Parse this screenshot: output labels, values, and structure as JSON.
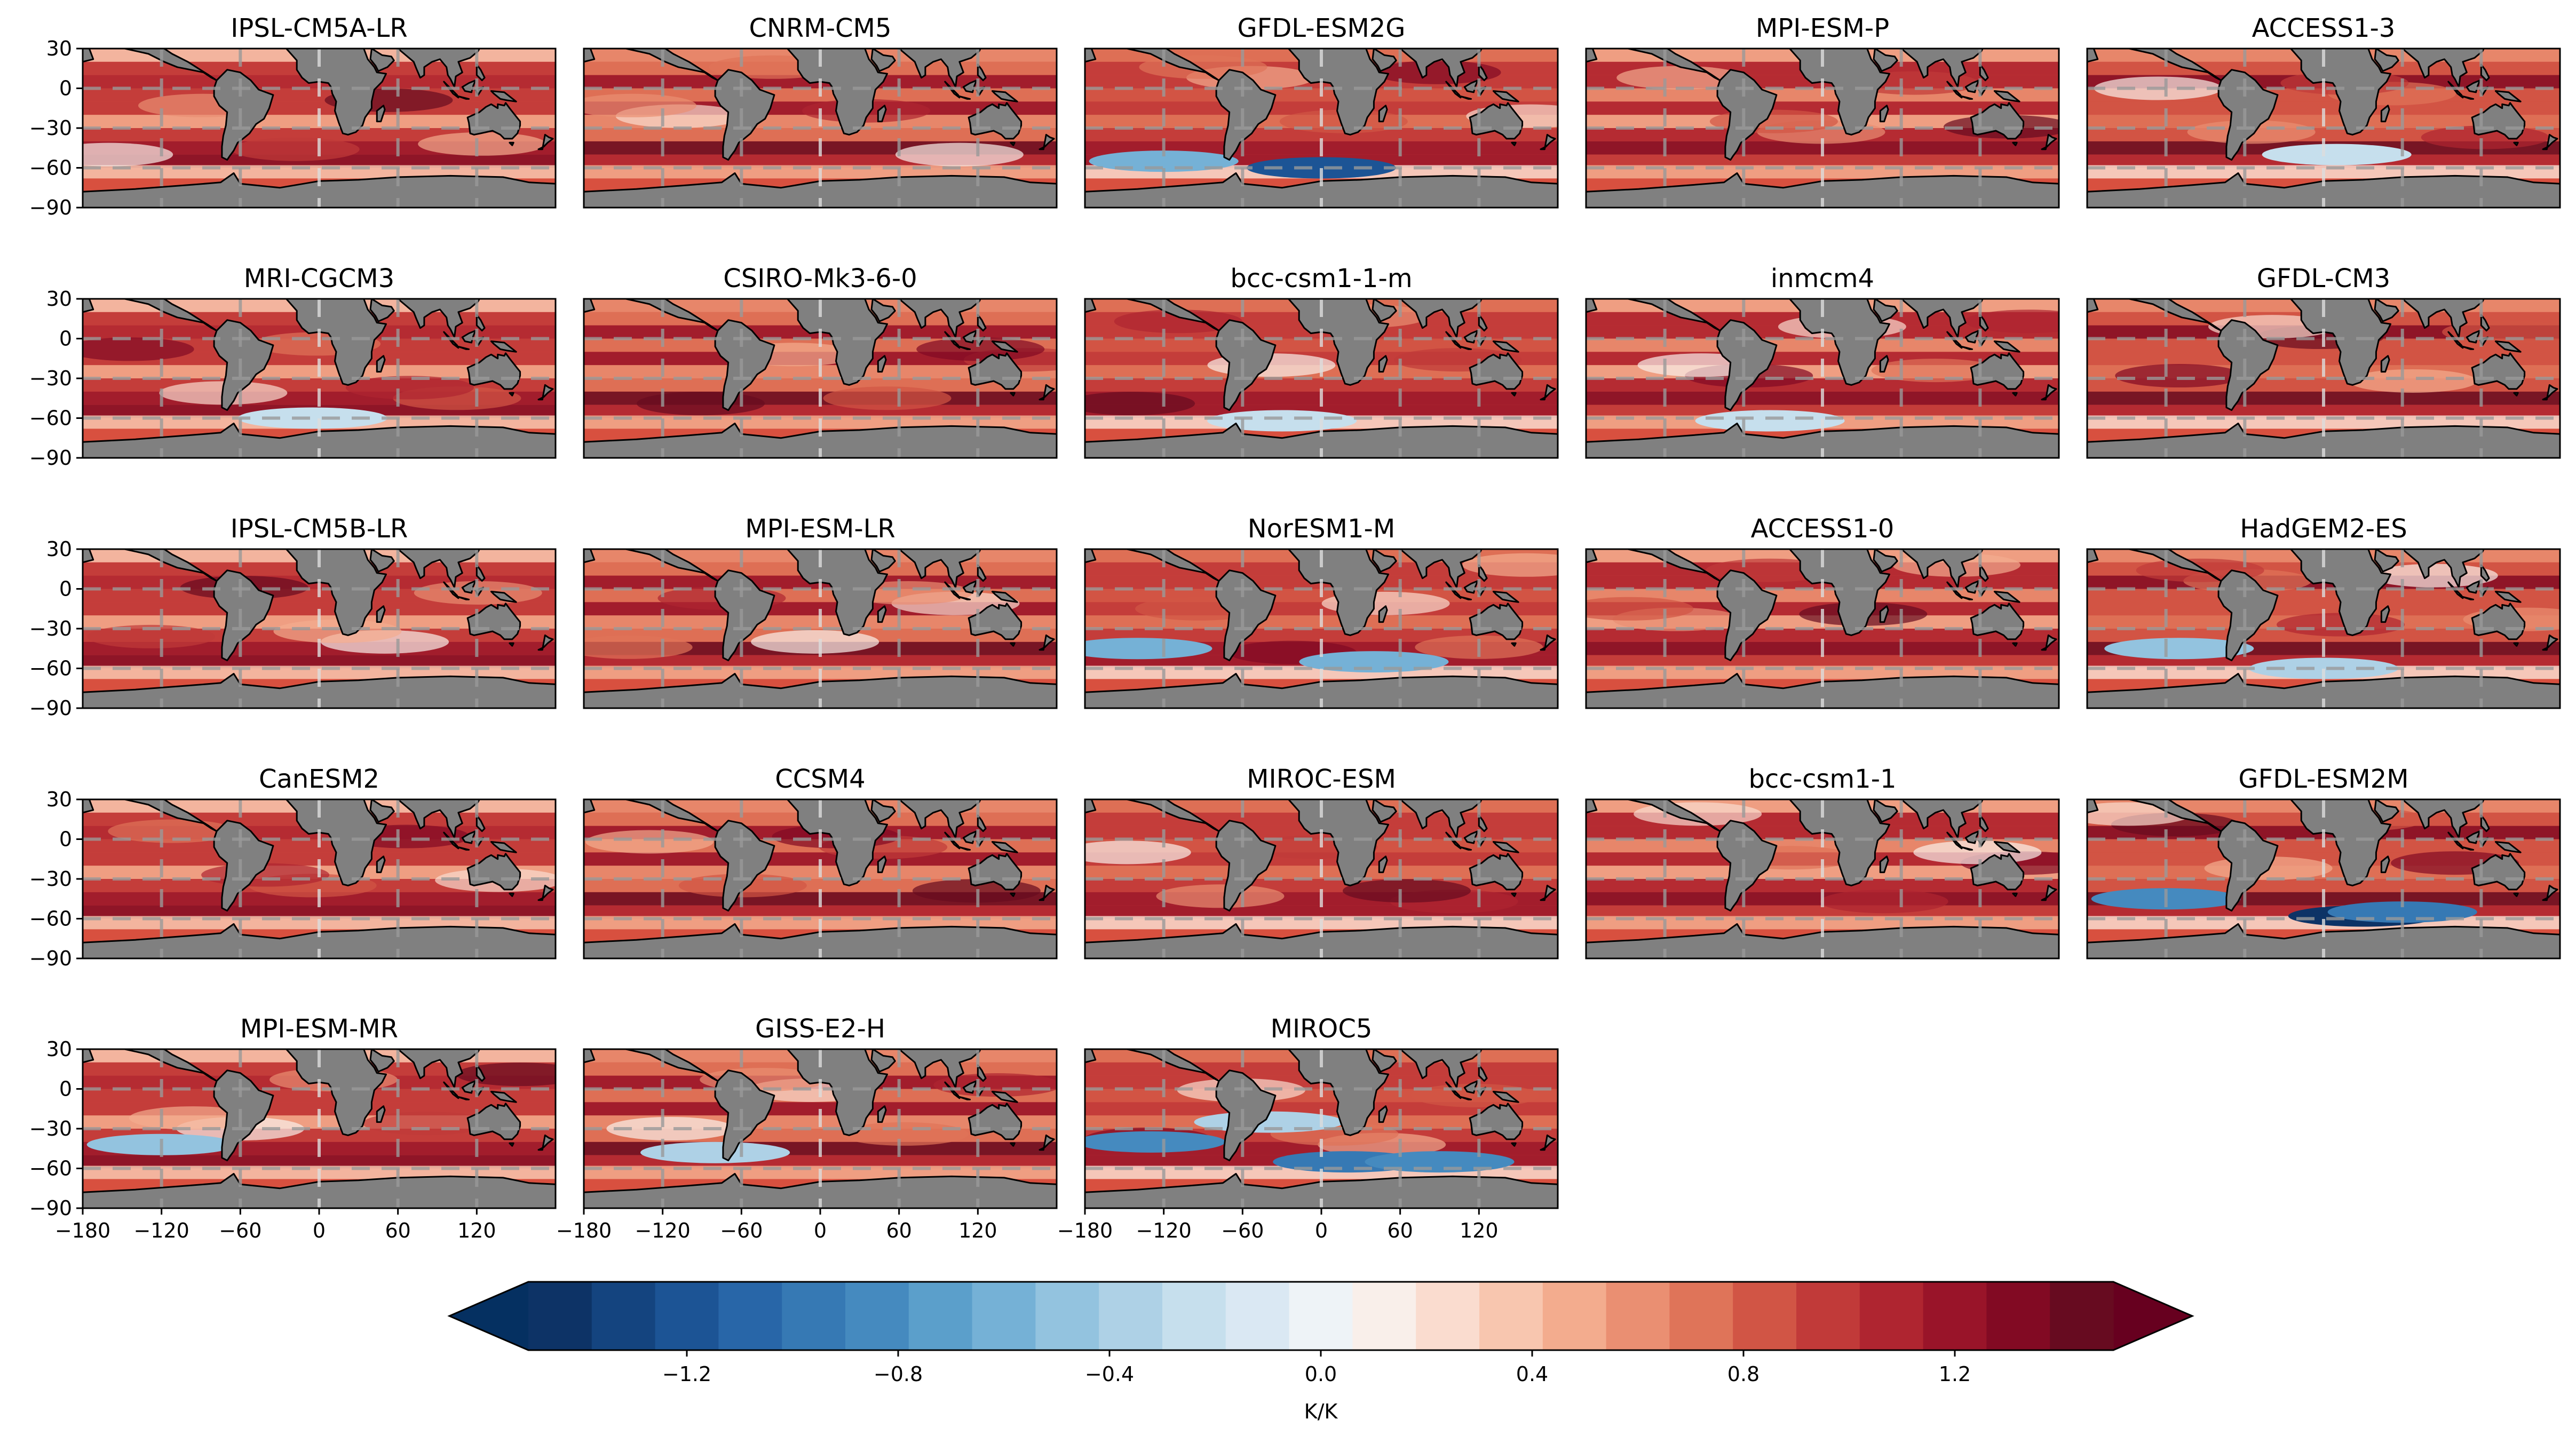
{
  "chart_data": {
    "type": "heatmap",
    "panels": [
      {
        "title": "IPSL-CM5A-LR",
        "cold_spots": []
      },
      {
        "title": "CNRM-CM5",
        "cold_spots": []
      },
      {
        "title": "GFDL-ESM2G",
        "cold_spots": [
          {
            "lon": 0,
            "lat": -60,
            "value": -1.2
          },
          {
            "lon": -120,
            "lat": -55,
            "value": -0.6
          }
        ]
      },
      {
        "title": "MPI-ESM-P",
        "cold_spots": []
      },
      {
        "title": "ACCESS1-3",
        "cold_spots": [
          {
            "lon": 10,
            "lat": -50,
            "value": -0.3
          }
        ]
      },
      {
        "title": "MRI-CGCM3",
        "cold_spots": [
          {
            "lon": -5,
            "lat": -60,
            "value": -0.3
          }
        ]
      },
      {
        "title": "CSIRO-Mk3-6-0",
        "cold_spots": []
      },
      {
        "title": "bcc-csm1-1-m",
        "cold_spots": [
          {
            "lon": -30,
            "lat": -62,
            "value": -0.3
          }
        ]
      },
      {
        "title": "inmcm4",
        "cold_spots": [
          {
            "lon": -40,
            "lat": -62,
            "value": -0.3
          }
        ]
      },
      {
        "title": "GFDL-CM3",
        "cold_spots": []
      },
      {
        "title": "IPSL-CM5B-LR",
        "cold_spots": []
      },
      {
        "title": "MPI-ESM-LR",
        "cold_spots": []
      },
      {
        "title": "NorESM1-M",
        "cold_spots": [
          {
            "lon": -140,
            "lat": -45,
            "value": -0.6
          },
          {
            "lon": 40,
            "lat": -55,
            "value": -0.6
          }
        ]
      },
      {
        "title": "ACCESS1-0",
        "cold_spots": []
      },
      {
        "title": "HadGEM2-ES",
        "cold_spots": [
          {
            "lon": -110,
            "lat": -45,
            "value": -0.5
          },
          {
            "lon": 0,
            "lat": -60,
            "value": -0.4
          }
        ]
      },
      {
        "title": "CanESM2",
        "cold_spots": []
      },
      {
        "title": "CCSM4",
        "cold_spots": []
      },
      {
        "title": "MIROC-ESM",
        "cold_spots": []
      },
      {
        "title": "bcc-csm1-1",
        "cold_spots": []
      },
      {
        "title": "GFDL-ESM2M",
        "cold_spots": [
          {
            "lon": 30,
            "lat": -58,
            "value": -1.4
          },
          {
            "lon": -120,
            "lat": -45,
            "value": -0.8
          },
          {
            "lon": 60,
            "lat": -55,
            "value": -1.0
          }
        ]
      },
      {
        "title": "MPI-ESM-MR",
        "cold_spots": [
          {
            "lon": -120,
            "lat": -42,
            "value": -0.5
          }
        ]
      },
      {
        "title": "GISS-E2-H",
        "cold_spots": [
          {
            "lon": -80,
            "lat": -48,
            "value": -0.4
          }
        ]
      },
      {
        "title": "MIROC5",
        "cold_spots": [
          {
            "lon": -130,
            "lat": -40,
            "value": -0.8
          },
          {
            "lon": 20,
            "lat": -55,
            "value": -1.0
          },
          {
            "lon": -40,
            "lat": -25,
            "value": -0.4
          },
          {
            "lon": 90,
            "lat": -55,
            "value": -0.8
          }
        ]
      }
    ],
    "x_axis": {
      "range": [
        -180,
        180
      ],
      "ticks": [
        -180,
        -120,
        -60,
        0,
        60,
        120
      ],
      "tick_labels": [
        "−180",
        "−120",
        "−60",
        "0",
        "60",
        "120"
      ]
    },
    "y_axis": {
      "range": [
        -90,
        30
      ],
      "ticks": [
        30,
        0,
        -30,
        -60,
        -90
      ],
      "tick_labels": [
        "30",
        "0",
        "−30",
        "−60",
        "−90"
      ]
    },
    "colorbar": {
      "label": "K/K",
      "range": [
        -1.5,
        1.5
      ],
      "extend": "both",
      "ticks": [
        -1.2,
        -0.8,
        -0.4,
        0.0,
        0.4,
        0.8,
        1.2
      ],
      "tick_labels": [
        "−1.2",
        "−0.8",
        "−0.4",
        "0.0",
        "0.4",
        "0.8",
        "1.2"
      ],
      "colors": [
        "#0d3366",
        "#14447f",
        "#1c5495",
        "#2866a8",
        "#3679b4",
        "#458abf",
        "#5b9fcb",
        "#75b1d6",
        "#93c3df",
        "#aed1e6",
        "#c6dfed",
        "#dae8f3",
        "#eef3f7",
        "#f9efea",
        "#fadccf",
        "#f8c6af",
        "#f3ac8e",
        "#ea8f72",
        "#df7459",
        "#d15545",
        "#c13a39",
        "#af2530",
        "#991429",
        "#820a23",
        "#670b20"
      ],
      "under_color": "#053061",
      "over_color": "#67001f"
    },
    "land_color": "#808080",
    "grid": true
  }
}
